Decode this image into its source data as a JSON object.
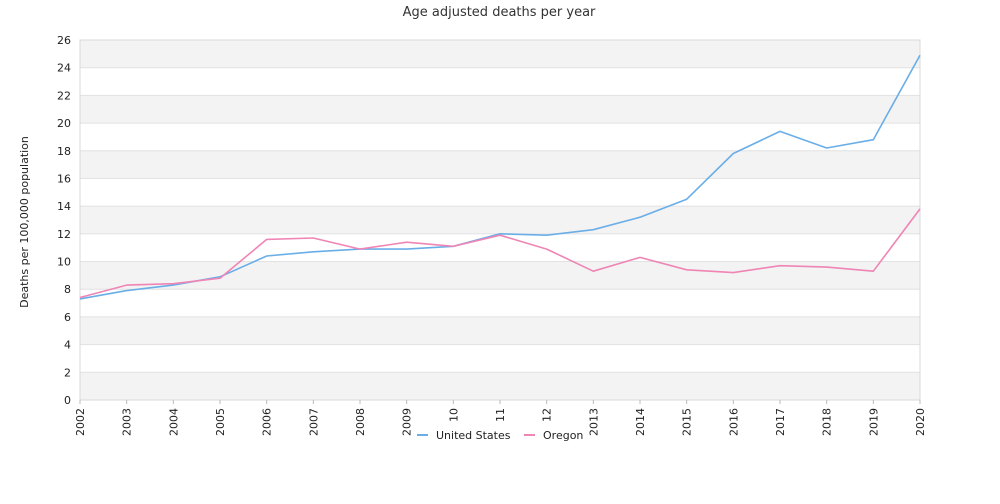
{
  "chart_data": {
    "type": "line",
    "title": "Age adjusted deaths per year",
    "ylabel": "Deaths per 100,000 population",
    "xlabel": "",
    "x": [
      "2002",
      "2003",
      "2004",
      "2005",
      "2006",
      "2007",
      "2008",
      "2009",
      "2010",
      "2011",
      "2012",
      "2013",
      "2014",
      "2015",
      "2016",
      "2017",
      "2018",
      "2019",
      "2020"
    ],
    "x_tick_labels": [
      "2002",
      "2003",
      "2004",
      "2005",
      "2006",
      "2007",
      "2008",
      "2009",
      "10",
      "11",
      "12",
      "2013",
      "2014",
      "2015",
      "2016",
      "2017",
      "2018",
      "2019",
      "2020"
    ],
    "ylim": [
      0,
      26
    ],
    "yticks": [
      0,
      2,
      4,
      6,
      8,
      10,
      12,
      14,
      16,
      18,
      20,
      22,
      24,
      26
    ],
    "grid": "horizontal alternating bands",
    "legend_position": "bottom",
    "series": [
      {
        "name": "United States",
        "color": "#6aaee8",
        "values": [
          7.3,
          7.9,
          8.3,
          8.9,
          10.4,
          10.7,
          10.9,
          10.9,
          11.1,
          12.0,
          11.9,
          12.3,
          13.2,
          14.5,
          17.8,
          19.4,
          18.2,
          18.8,
          24.9
        ]
      },
      {
        "name": "Oregon",
        "color": "#ef85b5",
        "values": [
          7.4,
          8.3,
          8.4,
          8.8,
          11.6,
          11.7,
          10.9,
          11.4,
          11.1,
          11.9,
          10.9,
          9.3,
          10.3,
          9.4,
          9.2,
          9.7,
          9.6,
          9.3,
          13.8
        ]
      }
    ]
  }
}
